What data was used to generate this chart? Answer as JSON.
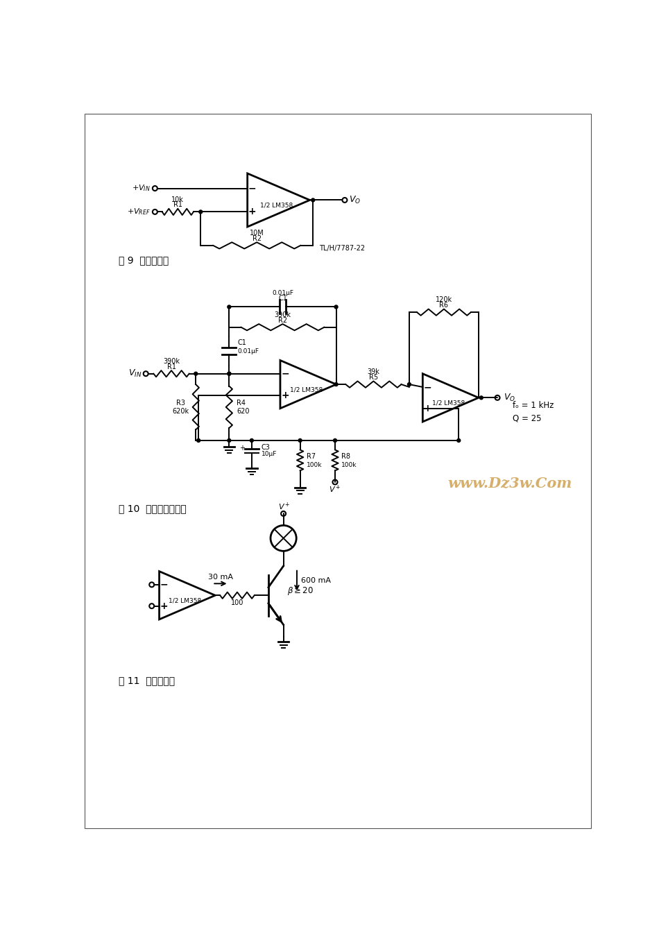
{
  "bg_color": "#ffffff",
  "fig9_caption": "图 9  滒后比较器",
  "fig10_caption": "图 10  带通有源滤波器",
  "fig11_caption": "图 11  灯驱动程序",
  "watermark": "www.Dz3w.Com",
  "tl_h_label": "TL/H/7787-22",
  "fo_label": "fₒ = 1 kHz",
  "q_label": "Q = 25"
}
